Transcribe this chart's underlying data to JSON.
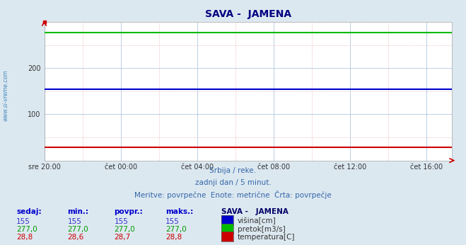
{
  "title": "SAVA -  JAMENA",
  "title_color": "#000080",
  "bg_color": "#dce8f0",
  "plot_bg_color": "#ffffff",
  "grid_major_color": "#b0c8e0",
  "grid_minor_color": "#f0c8c8",
  "x_ticks_labels": [
    "sre 20:00",
    "čet 00:00",
    "čet 04:00",
    "čet 08:00",
    "čet 12:00",
    "čet 16:00"
  ],
  "x_ticks_positions": [
    0,
    4,
    8,
    12,
    16,
    20
  ],
  "x_min": 0,
  "x_max": 21.33,
  "y_min": 0,
  "y_max": 300,
  "y_ticks": [
    100,
    200
  ],
  "visina_value": 155,
  "visina_color": "#0000cc",
  "pretok_value": 277.0,
  "pretok_color": "#00bb00",
  "temperatura_value": 28.8,
  "temperatura_color": "#cc0000",
  "subtitle1": "Srbija / reke.",
  "subtitle2": "zadnji dan / 5 minut.",
  "subtitle3": "Meritve: povrpečne  Enote: metrične  Črta: povrpečje",
  "subtitle_color": "#3366aa",
  "watermark": "www.si-vreme.com",
  "watermark_color": "#4488bb",
  "table_header": [
    "sedaj:",
    "min.:",
    "povpr.:",
    "maks.:",
    "SAVA -   JAMENA"
  ],
  "table_header_color": "#0000cc",
  "table_header5_color": "#000066",
  "table_data": [
    [
      "155",
      "155",
      "155",
      "155",
      "višina[cm]"
    ],
    [
      "277,0",
      "277,0",
      "277,0",
      "277,0",
      "pretok[m3/s]"
    ],
    [
      "28,8",
      "28,6",
      "28,7",
      "28,8",
      "temperatura[C]"
    ]
  ],
  "table_row_colors": [
    "#3333cc",
    "#009900",
    "#cc0000"
  ],
  "legend_colors": [
    "#0000cc",
    "#00bb00",
    "#cc0000"
  ],
  "num_points": 288
}
